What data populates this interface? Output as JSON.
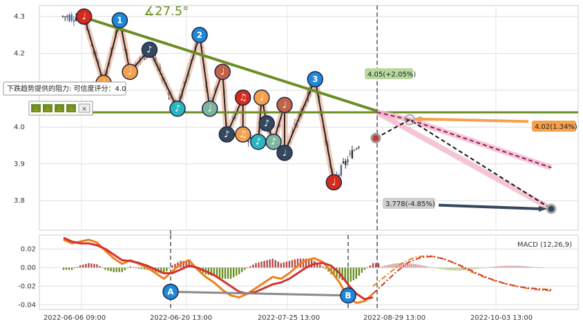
{
  "chart_data": [
    {
      "type": "candlestick",
      "panel": "price",
      "ylim": [
        3.72,
        4.33
      ],
      "y_ticks": [
        "4.3",
        "4.2",
        "4.1",
        "4.0",
        "3.9",
        "3.8"
      ],
      "y_tick_values": [
        4.3,
        4.2,
        4.1,
        4.0,
        3.9,
        3.8
      ],
      "grid": true,
      "resistance_label": "下跌趋势提供的阻力: 可信度评分：4.0",
      "angle_label": "∡27.5°",
      "support_level": 4.04,
      "trendline": [
        [
          0.0,
          4.3
        ],
        [
          35.3,
          4.04
        ]
      ],
      "current_marker": 3.97,
      "swing_points": [
        {
          "t": 0.3,
          "y": 4.3,
          "label": "♩"
        },
        {
          "t": 2.6,
          "y": 4.12,
          "label": "♩"
        },
        {
          "t": 5.7,
          "y": 4.15,
          "label": "♩"
        },
        {
          "t": 4.5,
          "y": 4.29,
          "label": "1"
        },
        {
          "t": 8.0,
          "y": 4.21,
          "label": "♪"
        },
        {
          "t": 11.3,
          "y": 4.05,
          "label": "♪"
        },
        {
          "t": 13.9,
          "y": 4.25,
          "label": "2"
        },
        {
          "t": 15.1,
          "y": 4.05,
          "label": "♩"
        },
        {
          "t": 16.6,
          "y": 4.15,
          "label": "♩"
        },
        {
          "t": 17.1,
          "y": 3.98,
          "label": "♪"
        },
        {
          "t": 19.0,
          "y": 4.08,
          "label": "♫"
        },
        {
          "t": 19.0,
          "y": 3.98,
          "label": "♫"
        },
        {
          "t": 21.2,
          "y": 4.08,
          "label": "♩"
        },
        {
          "t": 21.8,
          "y": 4.01,
          "label": "♪"
        },
        {
          "t": 20.8,
          "y": 3.96,
          "label": "♪"
        },
        {
          "t": 22.6,
          "y": 3.96,
          "label": "♪"
        },
        {
          "t": 23.9,
          "y": 4.06,
          "label": "♩"
        },
        {
          "t": 23.9,
          "y": 3.93,
          "label": "♩"
        },
        {
          "t": 27.5,
          "y": 4.13,
          "label": "3"
        },
        {
          "t": 29.7,
          "y": 3.85,
          "label": "♩"
        }
      ],
      "forecasts": [
        {
          "label": "4.05(+2.05%)",
          "value": 4.05,
          "change_pct": 2.05
        },
        {
          "label": "4.02(1.34%)",
          "value": 4.02,
          "change_pct": 1.34
        },
        {
          "label": "3.778(-4.85%)",
          "value": 3.778,
          "change_pct": -4.85
        }
      ]
    },
    {
      "type": "line",
      "panel": "macd",
      "title": "MACD (12,26,9)",
      "ylim": [
        -0.045,
        0.035
      ],
      "y_ticks": [
        "0.02",
        "0.00",
        "-0.02",
        "-0.04"
      ],
      "y_tick_values": [
        0.02,
        0.0,
        -0.02,
        -0.04
      ],
      "x_ticks": [
        "2022-06-06 09:00",
        "2022-06-20 13:00",
        "2022-07-25 13:00",
        "2022-08-29 13:00",
        "2022-10-03 13:00"
      ],
      "divergence_points": [
        {
          "label": "A",
          "value": -0.026
        },
        {
          "label": "B",
          "value": -0.03
        }
      ],
      "macd_line": [
        0.03,
        0.026,
        0.028,
        0.03,
        0.027,
        0.018,
        0.01,
        0.004,
        0.008,
        0.004,
        0.0,
        -0.006,
        -0.012,
        -0.004,
        0.004,
        0.008,
        -0.002,
        -0.01,
        -0.016,
        -0.024,
        -0.03,
        -0.032,
        -0.028,
        -0.022,
        -0.016,
        -0.01,
        -0.012,
        -0.006,
        0.002,
        0.008,
        0.01,
        0.006,
        -0.004,
        -0.016,
        -0.032,
        -0.038,
        -0.036,
        -0.028
      ],
      "signal_line": [
        0.032,
        0.028,
        0.026,
        0.026,
        0.024,
        0.02,
        0.014,
        0.008,
        0.007,
        0.005,
        0.002,
        -0.002,
        -0.006,
        -0.006,
        -0.002,
        0.002,
        0.0,
        -0.004,
        -0.008,
        -0.014,
        -0.02,
        -0.026,
        -0.028,
        -0.026,
        -0.022,
        -0.018,
        -0.016,
        -0.012,
        -0.006,
        0.0,
        0.004,
        0.005,
        0.002,
        -0.006,
        -0.018,
        -0.028,
        -0.034,
        -0.032
      ],
      "forecast_macd": [
        -0.02,
        -0.008,
        0.004,
        0.011,
        0.013,
        0.01,
        0.004,
        -0.004,
        -0.01,
        -0.015,
        -0.019,
        -0.022,
        -0.024,
        -0.025
      ],
      "forecast_signal": [
        -0.028,
        -0.016,
        -0.004,
        0.006,
        0.011,
        0.012,
        0.009,
        0.004,
        -0.002,
        -0.008,
        -0.013,
        -0.017,
        -0.02,
        -0.022,
        -0.023,
        -0.024
      ]
    }
  ],
  "colors": {
    "bull": "#2b2b2b",
    "bear": "#4a6b8a",
    "trend": "#6b8e23",
    "support": "#6b8e23",
    "zigzag_shadow": "#e8a88a",
    "forecast_pink": "#f4b6c8",
    "macd": "#f07f1a",
    "signal": "#d23232",
    "hist_pos": "#b54a4a",
    "hist_neg": "#6b8e23",
    "div_line": "#888888",
    "div_marker": "#1e88d8",
    "arrow_orange": "#f5a04a",
    "arrow_dark": "#34495e",
    "forecast_bg": "#b8d8a0",
    "orange_bg": "#f5a04a",
    "grey_bg": "#cfcfcf"
  },
  "icons": [
    "warning-icon",
    "warning-icon",
    "warning-icon",
    "warning-icon",
    "close-icon"
  ]
}
